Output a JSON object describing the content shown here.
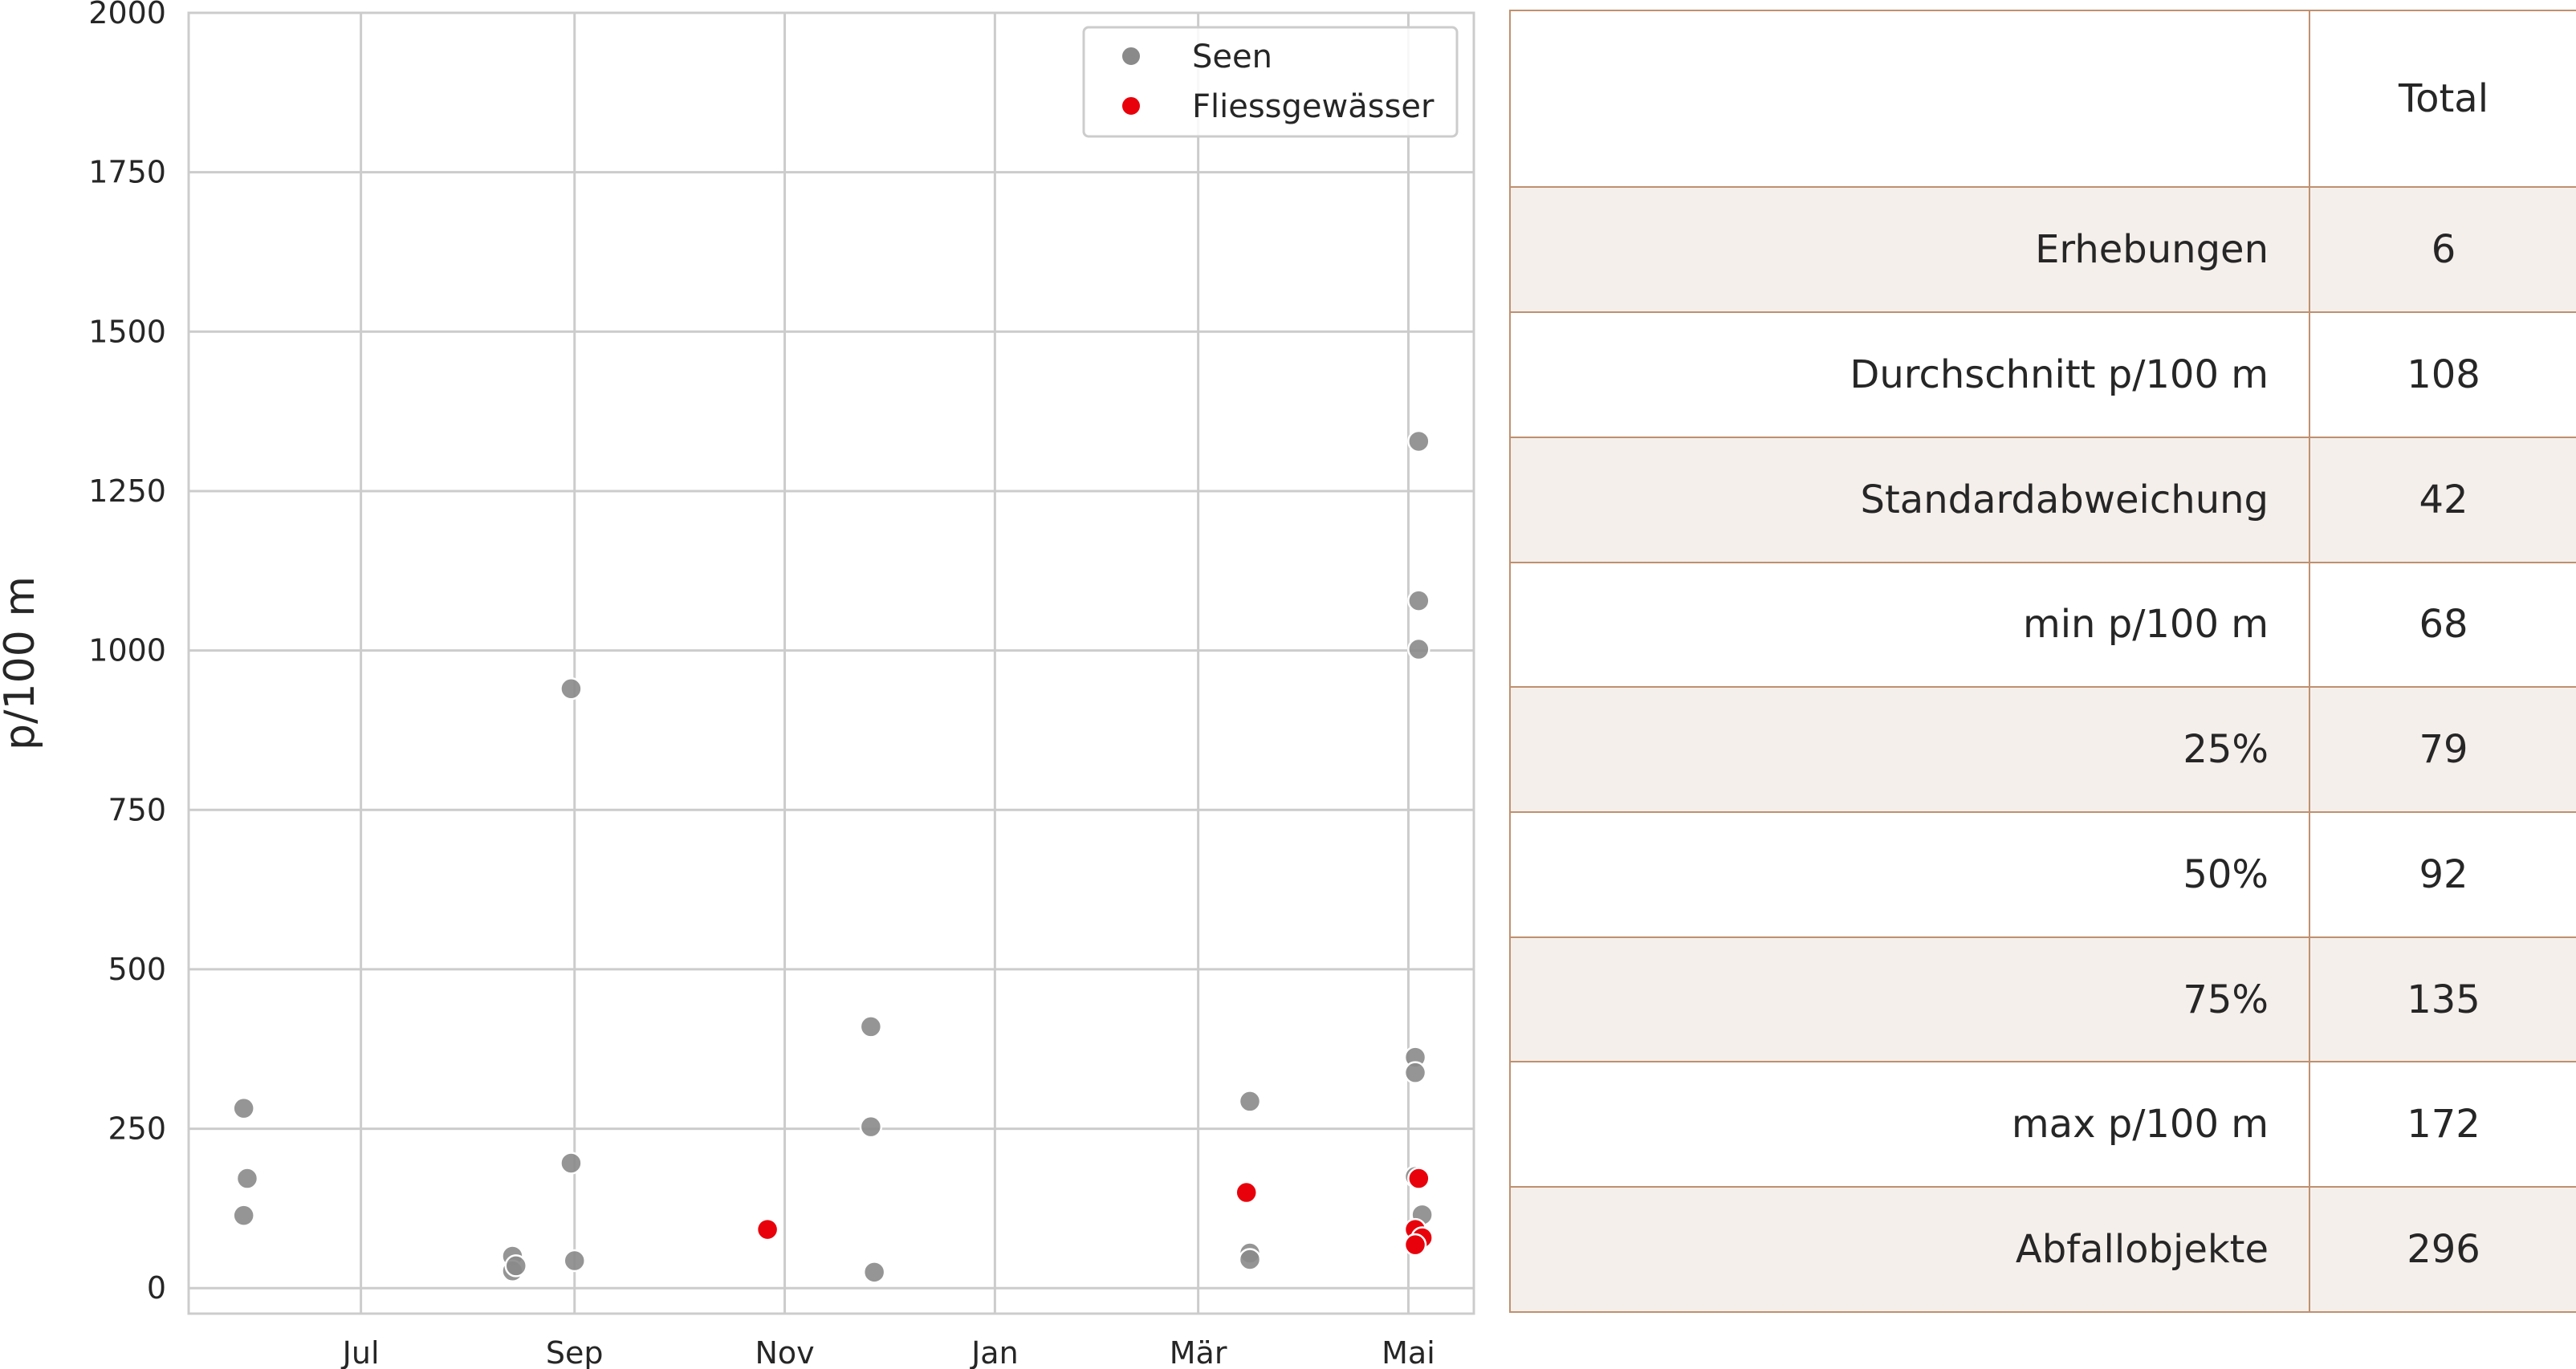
{
  "chart_data": {
    "type": "scatter",
    "ylabel": "p/100 m",
    "ylim": [
      -40,
      2000
    ],
    "yticks": [
      0,
      250,
      500,
      750,
      1000,
      1250,
      1500,
      1750,
      2000
    ],
    "xlim": [
      "2020-05-12",
      "2021-05-20"
    ],
    "xticks": [
      {
        "date": "2020-07-01",
        "label": "Jul"
      },
      {
        "date": "2020-09-01",
        "label": "Sep"
      },
      {
        "date": "2020-11-01",
        "label": "Nov"
      },
      {
        "date": "2021-01-01",
        "label": "Jan"
      },
      {
        "date": "2021-03-01",
        "label": "Mär"
      },
      {
        "date": "2021-05-01",
        "label": "Mai"
      }
    ],
    "grid": true,
    "legend_position": "top-right",
    "series": [
      {
        "name": "Seen",
        "color": "#8a8a8a",
        "points": [
          {
            "x": "2020-05-28",
            "y": 282
          },
          {
            "x": "2020-05-28",
            "y": 114
          },
          {
            "x": "2020-05-29",
            "y": 172
          },
          {
            "x": "2020-08-14",
            "y": 50
          },
          {
            "x": "2020-08-14",
            "y": 27
          },
          {
            "x": "2020-08-15",
            "y": 35
          },
          {
            "x": "2020-08-31",
            "y": 940
          },
          {
            "x": "2020-08-31",
            "y": 196
          },
          {
            "x": "2020-09-01",
            "y": 43
          },
          {
            "x": "2020-11-26",
            "y": 410
          },
          {
            "x": "2020-11-26",
            "y": 253
          },
          {
            "x": "2020-11-27",
            "y": 25
          },
          {
            "x": "2021-03-16",
            "y": 293
          },
          {
            "x": "2021-03-16",
            "y": 55
          },
          {
            "x": "2021-03-16",
            "y": 45
          },
          {
            "x": "2021-05-04",
            "y": 1328
          },
          {
            "x": "2021-05-04",
            "y": 1078
          },
          {
            "x": "2021-05-04",
            "y": 1002
          },
          {
            "x": "2021-05-03",
            "y": 362
          },
          {
            "x": "2021-05-03",
            "y": 338
          },
          {
            "x": "2021-05-03",
            "y": 175
          },
          {
            "x": "2021-05-05",
            "y": 115
          },
          {
            "x": "2021-05-03",
            "y": 90
          }
        ]
      },
      {
        "name": "Fliessgewässer",
        "color": "#e8000b",
        "points": [
          {
            "x": "2020-10-27",
            "y": 92
          },
          {
            "x": "2021-03-15",
            "y": 150
          },
          {
            "x": "2021-05-04",
            "y": 172
          },
          {
            "x": "2021-05-03",
            "y": 92
          },
          {
            "x": "2021-05-05",
            "y": 79
          },
          {
            "x": "2021-05-03",
            "y": 68
          }
        ]
      }
    ]
  },
  "table": {
    "header": {
      "label": "",
      "value": "Total"
    },
    "rows": [
      {
        "label": "Erhebungen",
        "value": "6"
      },
      {
        "label": "Durchschnitt p/100 m",
        "value": "108"
      },
      {
        "label": "Standardabweichung",
        "value": "42"
      },
      {
        "label": "min p/100 m",
        "value": "68"
      },
      {
        "label": "25%",
        "value": "79"
      },
      {
        "label": "50%",
        "value": "92"
      },
      {
        "label": "75%",
        "value": "135"
      },
      {
        "label": "max p/100 m",
        "value": "172"
      },
      {
        "label": "Abfallobjekte",
        "value": "296"
      }
    ]
  }
}
